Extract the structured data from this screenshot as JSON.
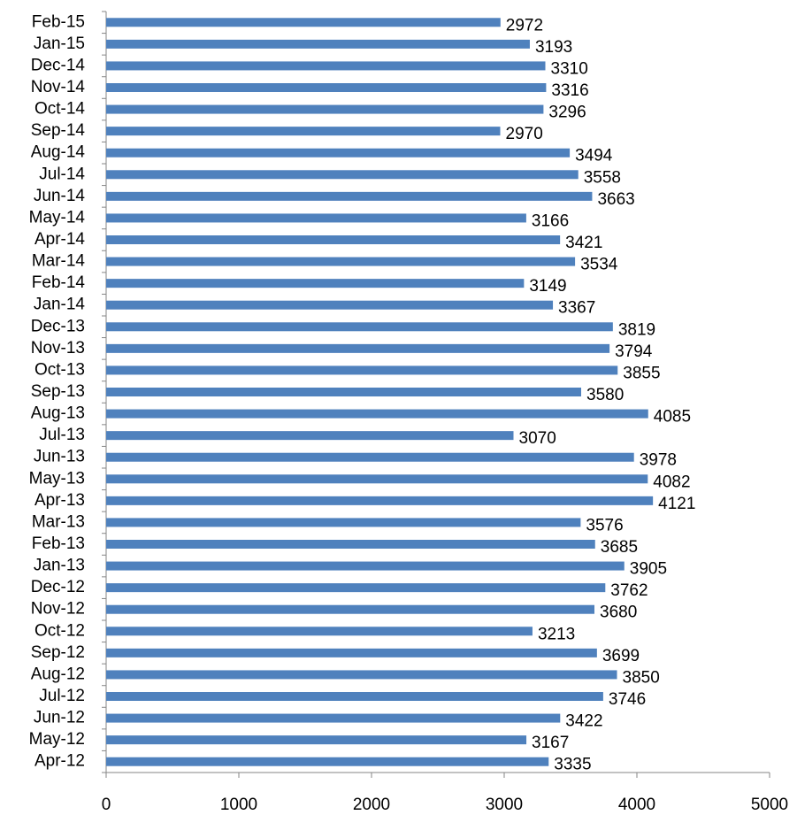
{
  "chart_data": {
    "type": "barh",
    "color": "#4f81bd",
    "categories": [
      "Feb-15",
      "Jan-15",
      "Dec-14",
      "Nov-14",
      "Oct-14",
      "Sep-14",
      "Aug-14",
      "Jul-14",
      "Jun-14",
      "May-14",
      "Apr-14",
      "Mar-14",
      "Feb-14",
      "Jan-14",
      "Dec-13",
      "Nov-13",
      "Oct-13",
      "Sep-13",
      "Aug-13",
      "Jul-13",
      "Jun-13",
      "May-13",
      "Apr-13",
      "Mar-13",
      "Feb-13",
      "Jan-13",
      "Dec-12",
      "Nov-12",
      "Oct-12",
      "Sep-12",
      "Aug-12",
      "Jul-12",
      "Jun-12",
      "May-12",
      "Apr-12"
    ],
    "values": [
      2972,
      3193,
      3310,
      3316,
      3296,
      2970,
      3494,
      3558,
      3663,
      3166,
      3421,
      3534,
      3149,
      3367,
      3819,
      3794,
      3855,
      3580,
      4085,
      3070,
      3978,
      4082,
      4121,
      3576,
      3685,
      3905,
      3762,
      3680,
      3213,
      3699,
      3850,
      3746,
      3422,
      3167,
      3335
    ],
    "xlim": [
      0,
      5000
    ],
    "xticks": [
      0,
      1000,
      2000,
      3000,
      4000,
      5000
    ]
  }
}
